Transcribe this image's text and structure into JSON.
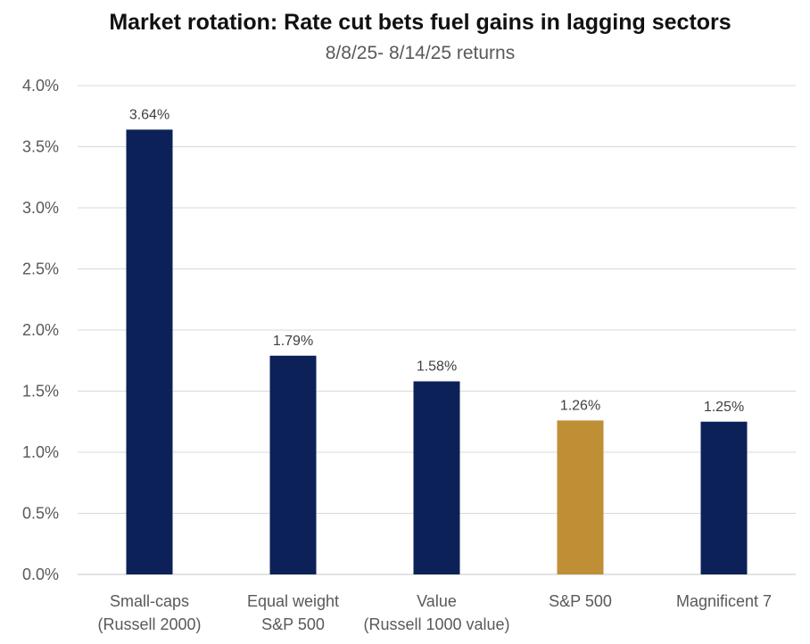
{
  "chart_data": {
    "type": "bar",
    "title": "Market rotation: Rate cut bets fuel gains in lagging sectors",
    "subtitle": "8/8/25- 8/14/25 returns",
    "xlabel": "",
    "ylabel": "",
    "ylim": [
      0,
      4.0
    ],
    "y_ticks": [
      {
        "value": 0.0,
        "label": "0.0%"
      },
      {
        "value": 0.5,
        "label": "0.5%"
      },
      {
        "value": 1.0,
        "label": "1.0%"
      },
      {
        "value": 1.5,
        "label": "1.5%"
      },
      {
        "value": 2.0,
        "label": "2.0%"
      },
      {
        "value": 2.5,
        "label": "2.5%"
      },
      {
        "value": 3.0,
        "label": "3.0%"
      },
      {
        "value": 3.5,
        "label": "3.5%"
      },
      {
        "value": 4.0,
        "label": "4.0%"
      }
    ],
    "grid": true,
    "legend": "none",
    "categories": [
      [
        "Small-caps",
        "(Russell 2000)"
      ],
      [
        "Equal weight",
        "S&P 500"
      ],
      [
        "Value",
        "(Russell 1000 value)"
      ],
      [
        "S&P 500"
      ],
      [
        "Magnificent 7"
      ]
    ],
    "values": [
      3.64,
      1.79,
      1.58,
      1.26,
      1.25
    ],
    "data_labels": [
      "3.64%",
      "1.79%",
      "1.58%",
      "1.26%",
      "1.25%"
    ],
    "colors": [
      "#0c2158",
      "#0c2158",
      "#0c2158",
      "#bf8f36",
      "#0c2158"
    ]
  }
}
